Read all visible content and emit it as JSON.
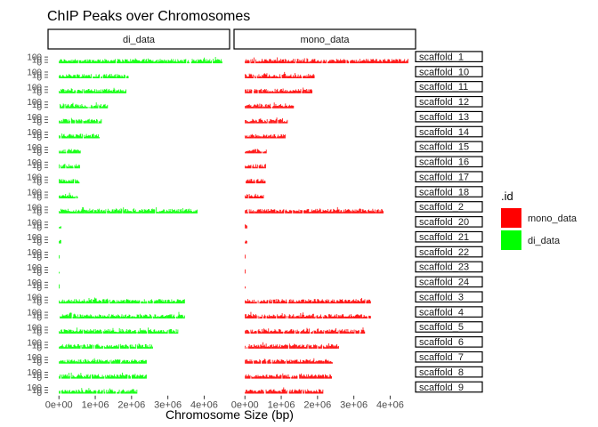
{
  "chart_data": {
    "type": "bar",
    "title": "ChIP Peaks over Chromosomes",
    "xlabel": "Chromosome Size (bp)",
    "ylabel": "",
    "x_ticks": [
      {
        "value": 0,
        "label": "0e+00"
      },
      {
        "value": 1000000,
        "label": "1e+06"
      },
      {
        "value": 2000000,
        "label": "2e+06"
      },
      {
        "value": 3000000,
        "label": "3e+06"
      },
      {
        "value": 4000000,
        "label": "4e+06"
      }
    ],
    "xlim": [
      -300000,
      4700000
    ],
    "y_tick_labels": [
      "0",
      "10",
      "100"
    ],
    "grid": false,
    "legend": {
      "title": ".id",
      "position": "right",
      "entries": [
        {
          "label": "mono_data",
          "color": "#ff0000"
        },
        {
          "label": "di_data",
          "color": "#00ff00"
        }
      ]
    },
    "panels": [
      {
        "label": "di_data",
        "color": "#00ff00"
      },
      {
        "label": "mono_data",
        "color": "#ff0000"
      }
    ],
    "rows": [
      {
        "label": "scaffold_1",
        "length": 4500000
      },
      {
        "label": "scaffold_10",
        "length": 1920000
      },
      {
        "label": "scaffold_11",
        "length": 1860000
      },
      {
        "label": "scaffold_12",
        "length": 1350000
      },
      {
        "label": "scaffold_13",
        "length": 1180000
      },
      {
        "label": "scaffold_14",
        "length": 1120000
      },
      {
        "label": "scaffold_15",
        "length": 600000
      },
      {
        "label": "scaffold_16",
        "length": 580000
      },
      {
        "label": "scaffold_17",
        "length": 570000
      },
      {
        "label": "scaffold_18",
        "length": 520000
      },
      {
        "label": "scaffold_2",
        "length": 3820000
      },
      {
        "label": "scaffold_20",
        "length": 70000
      },
      {
        "label": "scaffold_21",
        "length": 60000
      },
      {
        "label": "scaffold_22",
        "length": 30000
      },
      {
        "label": "scaffold_23",
        "length": 20000
      },
      {
        "label": "scaffold_24",
        "length": 10000
      },
      {
        "label": "scaffold_3",
        "length": 3470000
      },
      {
        "label": "scaffold_4",
        "length": 3470000
      },
      {
        "label": "scaffold_5",
        "length": 3310000
      },
      {
        "label": "scaffold_6",
        "length": 2590000
      },
      {
        "label": "scaffold_7",
        "length": 2420000
      },
      {
        "label": "scaffold_8",
        "length": 2420000
      },
      {
        "label": "scaffold_9",
        "length": 2160000
      }
    ]
  }
}
